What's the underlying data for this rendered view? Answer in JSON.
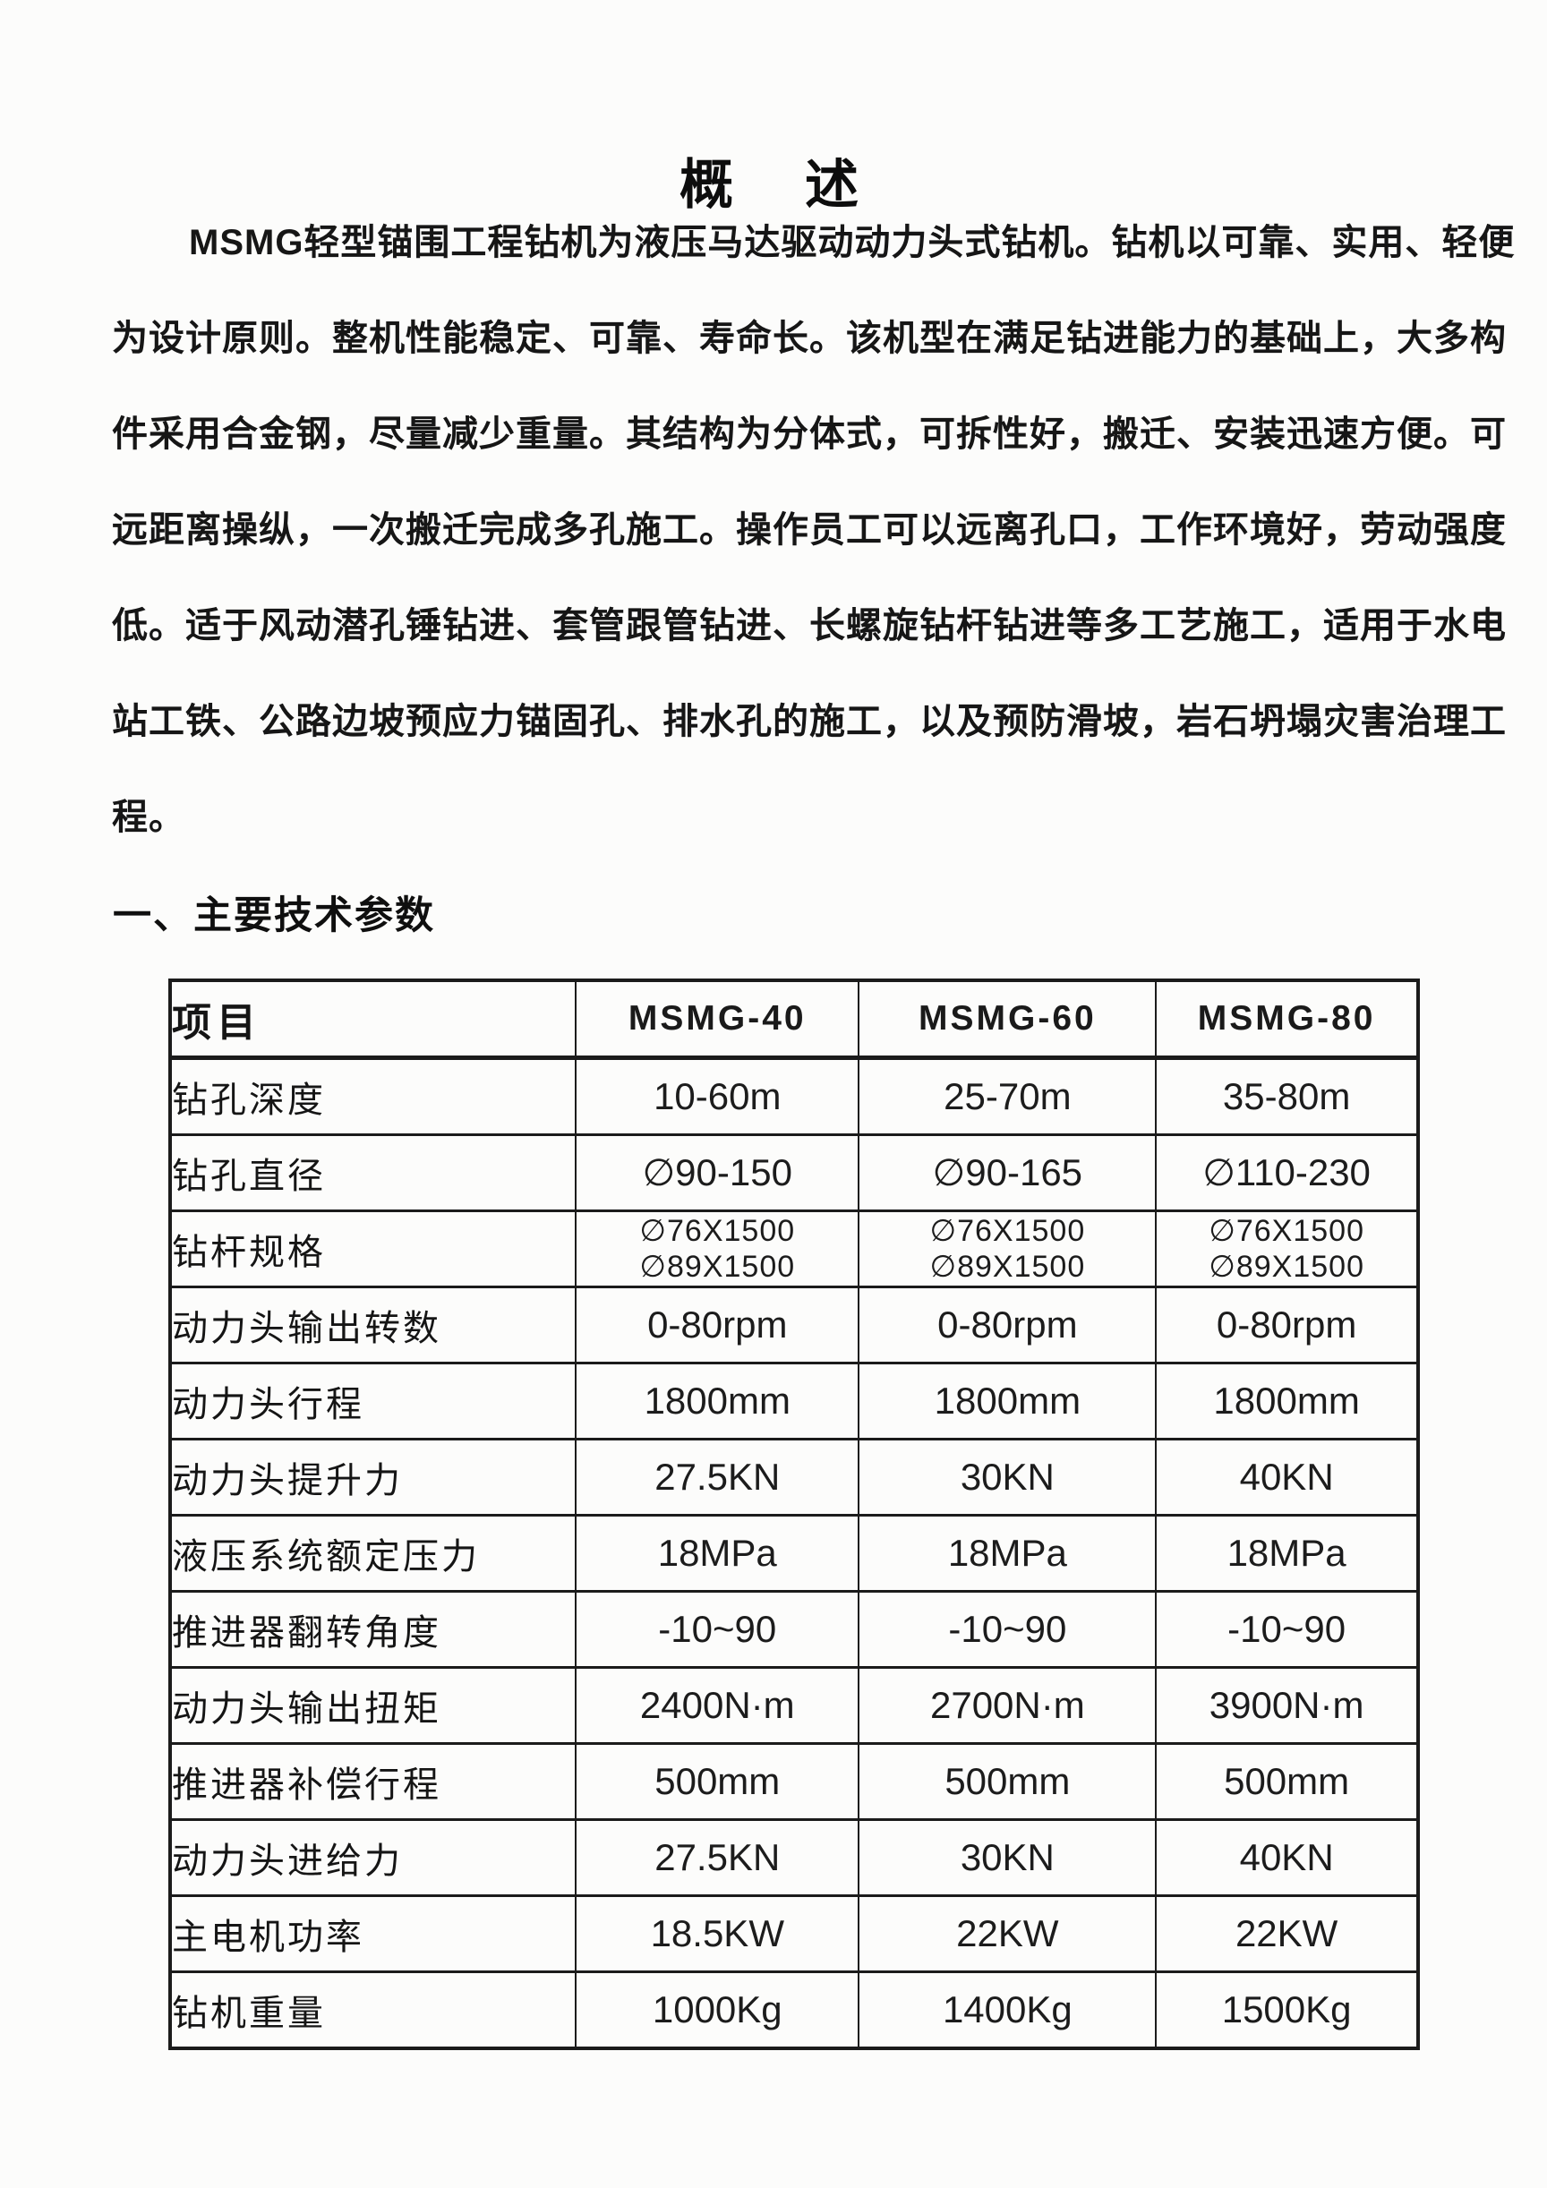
{
  "page": {
    "title": "概　述",
    "section_heading": "一、主要技术参数"
  },
  "overview": {
    "paragraph_lines": [
      "MSMG轻型锚围工程钻机为液压马达驱动动力头式钻机。钻机以可靠、实用、轻便",
      "为设计原则。整机性能稳定、可靠、寿命长。该机型在满足钻进能力的基础上，大多构",
      "件采用合金钢，尽量减少重量。其结构为分体式，可拆性好，搬迁、安装迅速方便。可",
      "远距离操纵，一次搬迁完成多孔施工。操作员工可以远离孔口，工作环境好，劳动强度",
      "低。适于风动潜孔锤钻进、套管跟管钻进、长螺旋钻杆钻进等多工艺施工，适用于水电",
      "站工铁、公路边坡预应力锚固孔、排水孔的施工，以及预防滑坡，岩石坍塌灾害治理工",
      "程。"
    ]
  },
  "table": {
    "columns": [
      "项目",
      "MSMG-40",
      "MSMG-60",
      "MSMG-80"
    ],
    "rows": [
      {
        "label": "钻孔深度",
        "values": [
          "10-60m",
          "25-70m",
          "35-80m"
        ]
      },
      {
        "label": "钻孔直径",
        "values": [
          "∅90-150",
          "∅90-165",
          "∅110-230"
        ]
      },
      {
        "label": "钻杆规格",
        "values": [
          "∅76X1500\n∅89X1500",
          "∅76X1500\n∅89X1500",
          "∅76X1500\n∅89X1500"
        ],
        "multiline": true
      },
      {
        "label": "动力头输出转数",
        "values": [
          "0-80rpm",
          "0-80rpm",
          "0-80rpm"
        ]
      },
      {
        "label": "动力头行程",
        "values": [
          "1800mm",
          "1800mm",
          "1800mm"
        ]
      },
      {
        "label": "动力头提升力",
        "values": [
          "27.5KN",
          "30KN",
          "40KN"
        ]
      },
      {
        "label": "液压系统额定压力",
        "values": [
          "18MPa",
          "18MPa",
          "18MPa"
        ]
      },
      {
        "label": "推进器翻转角度",
        "values": [
          "-10~90",
          "-10~90",
          "-10~90"
        ]
      },
      {
        "label": "动力头输出扭矩",
        "values": [
          "2400N·m",
          "2700N·m",
          "3900N·m"
        ]
      },
      {
        "label": "推进器补偿行程",
        "values": [
          "500mm",
          "500mm",
          "500mm"
        ]
      },
      {
        "label": "动力头进给力",
        "values": [
          "27.5KN",
          "30KN",
          "40KN"
        ]
      },
      {
        "label": "主电机功率",
        "values": [
          "18.5KW",
          "22KW",
          "22KW"
        ]
      },
      {
        "label": "钻机重量",
        "values": [
          "1000Kg",
          "1400Kg",
          "1500Kg"
        ]
      }
    ]
  },
  "colors": {
    "text": "#141414",
    "background": "#fcfcfb",
    "border": "#1b1b1b"
  }
}
